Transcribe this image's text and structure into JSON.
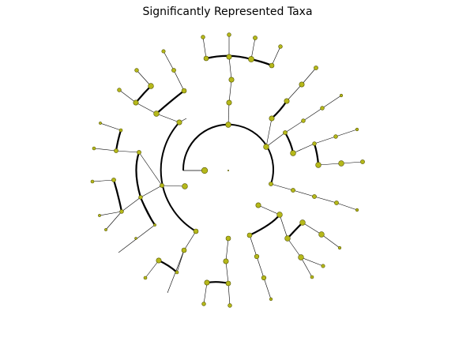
{
  "figure": {
    "title": "Significantly Represented Taxa"
  },
  "colors": {
    "background": "#ffffff",
    "branch": "#000000",
    "node_fill": "#b5b81a",
    "node_edge": "#555500"
  },
  "chart_data": {
    "type": "cladogram",
    "title": "Significantly Represented Taxa",
    "layout": "circular",
    "node_labels_shown": false
  }
}
